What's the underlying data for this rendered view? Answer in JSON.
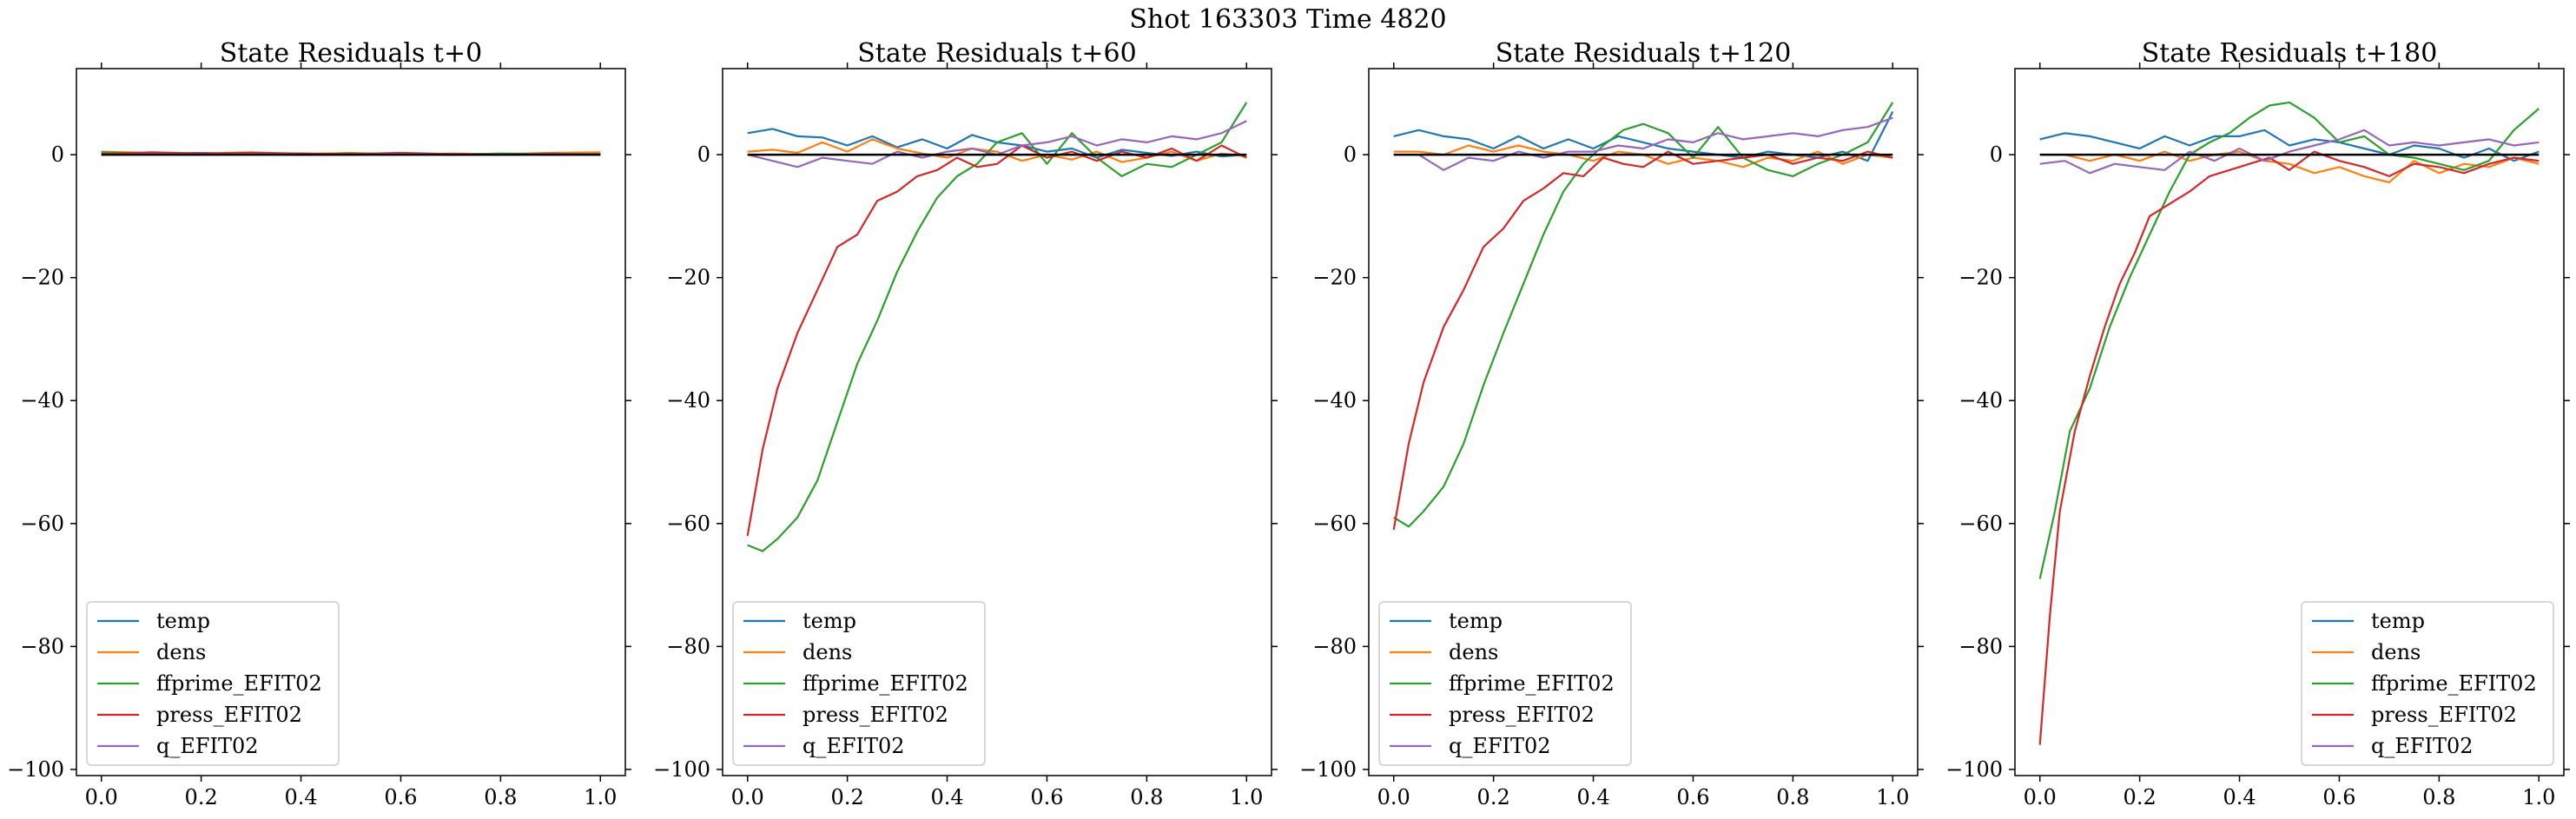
{
  "figure": {
    "suptitle": "Shot 163303   Time 4820"
  },
  "chart_data": [
    {
      "type": "line",
      "title": "State Residuals t+0",
      "xlim": [
        -0.05,
        1.05
      ],
      "ylim": [
        -101,
        14
      ],
      "xticks": [
        0.0,
        0.2,
        0.4,
        0.6,
        0.8,
        1.0
      ],
      "yticks": [
        -100,
        -80,
        -60,
        -40,
        -20,
        0
      ],
      "legend_position": "lower left",
      "reference_line": 0,
      "series": [
        {
          "name": "temp",
          "color": "#1f77b4",
          "x": [
            0.0,
            0.1,
            0.2,
            0.3,
            0.4,
            0.5,
            0.6,
            0.7,
            0.8,
            0.9,
            1.0
          ],
          "y": [
            0.2,
            0.1,
            0.3,
            0.1,
            0.2,
            0.0,
            0.1,
            0.0,
            0.1,
            0.0,
            0.2
          ]
        },
        {
          "name": "dens",
          "color": "#ff7f0e",
          "x": [
            0.0,
            0.1,
            0.2,
            0.3,
            0.4,
            0.5,
            0.6,
            0.7,
            0.8,
            0.9,
            1.0
          ],
          "y": [
            0.5,
            0.3,
            0.2,
            0.4,
            0.1,
            0.3,
            0.0,
            0.2,
            0.1,
            0.3,
            0.4
          ]
        },
        {
          "name": "ffprime_EFIT02",
          "color": "#2ca02c",
          "x": [
            0.0,
            0.1,
            0.2,
            0.3,
            0.4,
            0.5,
            0.6,
            0.7,
            0.8,
            0.9,
            1.0
          ],
          "y": [
            0.4,
            0.2,
            0.1,
            0.3,
            0.0,
            0.2,
            0.1,
            0.0,
            0.2,
            0.1,
            0.1
          ]
        },
        {
          "name": "press_EFIT02",
          "color": "#d62728",
          "x": [
            0.0,
            0.1,
            0.2,
            0.3,
            0.4,
            0.5,
            0.6,
            0.7,
            0.8,
            0.9,
            1.0
          ],
          "y": [
            0.1,
            0.4,
            0.2,
            0.3,
            0.2,
            0.1,
            0.3,
            0.1,
            0.0,
            0.2,
            0.0
          ]
        },
        {
          "name": "q_EFIT02",
          "color": "#9467bd",
          "x": [
            0.0,
            0.1,
            0.2,
            0.3,
            0.4,
            0.5,
            0.6,
            0.7,
            0.8,
            0.9,
            1.0
          ],
          "y": [
            0.0,
            0.1,
            0.0,
            0.1,
            0.0,
            0.0,
            0.1,
            0.0,
            0.0,
            0.1,
            0.0
          ]
        }
      ]
    },
    {
      "type": "line",
      "title": "State Residuals t+60",
      "xlim": [
        -0.05,
        1.05
      ],
      "ylim": [
        -101,
        14
      ],
      "xticks": [
        0.0,
        0.2,
        0.4,
        0.6,
        0.8,
        1.0
      ],
      "yticks": [
        -100,
        -80,
        -60,
        -40,
        -20,
        0
      ],
      "legend_position": "lower left",
      "reference_line": 0,
      "series": [
        {
          "name": "temp",
          "color": "#1f77b4",
          "x": [
            0.0,
            0.05,
            0.1,
            0.15,
            0.2,
            0.25,
            0.3,
            0.35,
            0.4,
            0.45,
            0.5,
            0.55,
            0.6,
            0.65,
            0.7,
            0.75,
            0.8,
            0.85,
            0.9,
            0.95,
            1.0
          ],
          "y": [
            3.5,
            4.2,
            3.0,
            2.8,
            1.5,
            3.0,
            1.2,
            2.5,
            1.0,
            3.2,
            2.0,
            1.5,
            0.5,
            1.0,
            -0.5,
            0.8,
            0.3,
            -0.2,
            0.5,
            -0.3,
            0.0
          ]
        },
        {
          "name": "dens",
          "color": "#ff7f0e",
          "x": [
            0.0,
            0.05,
            0.1,
            0.15,
            0.2,
            0.25,
            0.3,
            0.35,
            0.4,
            0.45,
            0.5,
            0.55,
            0.6,
            0.65,
            0.7,
            0.75,
            0.8,
            0.85,
            0.9,
            0.95,
            1.0
          ],
          "y": [
            0.5,
            0.8,
            0.3,
            2.0,
            0.5,
            2.5,
            1.0,
            0.2,
            -0.5,
            1.0,
            0.5,
            -1.0,
            0.0,
            -0.8,
            0.5,
            -1.2,
            -0.5,
            0.5,
            -1.0,
            0.2,
            -0.3
          ]
        },
        {
          "name": "ffprime_EFIT02",
          "color": "#2ca02c",
          "x": [
            0.0,
            0.03,
            0.06,
            0.1,
            0.14,
            0.18,
            0.22,
            0.26,
            0.3,
            0.34,
            0.38,
            0.42,
            0.46,
            0.5,
            0.55,
            0.6,
            0.65,
            0.7,
            0.75,
            0.8,
            0.85,
            0.9,
            0.95,
            1.0
          ],
          "y": [
            -63.5,
            -64.5,
            -62.5,
            -59,
            -53,
            -43.5,
            -34,
            -27,
            -19,
            -12.5,
            -7,
            -3.5,
            -1.5,
            2,
            3.5,
            -1.5,
            3.5,
            -0.5,
            -3.5,
            -1.5,
            -2.0,
            0.0,
            2.0,
            8.5
          ]
        },
        {
          "name": "press_EFIT02",
          "color": "#d62728",
          "x": [
            0.0,
            0.03,
            0.06,
            0.1,
            0.14,
            0.18,
            0.22,
            0.26,
            0.3,
            0.34,
            0.38,
            0.42,
            0.46,
            0.5,
            0.55,
            0.6,
            0.65,
            0.7,
            0.75,
            0.8,
            0.85,
            0.9,
            0.95,
            1.0
          ],
          "y": [
            -62,
            -48,
            -38,
            -29,
            -22,
            -15,
            -13,
            -7.5,
            -6,
            -3.5,
            -2.5,
            -0.5,
            -2,
            -1.5,
            1.5,
            -0.5,
            0.5,
            -1.0,
            0.5,
            -0.5,
            1.0,
            -1.0,
            1.5,
            -0.5
          ]
        },
        {
          "name": "q_EFIT02",
          "color": "#9467bd",
          "x": [
            0.0,
            0.05,
            0.1,
            0.15,
            0.2,
            0.25,
            0.3,
            0.35,
            0.4,
            0.45,
            0.5,
            0.55,
            0.6,
            0.65,
            0.7,
            0.75,
            0.8,
            0.85,
            0.9,
            0.95,
            1.0
          ],
          "y": [
            0.0,
            -1.0,
            -2.0,
            -0.5,
            -1.0,
            -1.5,
            0.5,
            -0.5,
            0.5,
            1.0,
            0.0,
            1.5,
            2.0,
            3.0,
            1.5,
            2.5,
            2.0,
            3.0,
            2.5,
            3.5,
            5.5
          ]
        }
      ]
    },
    {
      "type": "line",
      "title": "State Residuals t+120",
      "xlim": [
        -0.05,
        1.05
      ],
      "ylim": [
        -101,
        14
      ],
      "xticks": [
        0.0,
        0.2,
        0.4,
        0.6,
        0.8,
        1.0
      ],
      "yticks": [
        -100,
        -80,
        -60,
        -40,
        -20,
        0
      ],
      "legend_position": "lower left",
      "reference_line": 0,
      "series": [
        {
          "name": "temp",
          "color": "#1f77b4",
          "x": [
            0.0,
            0.05,
            0.1,
            0.15,
            0.2,
            0.25,
            0.3,
            0.35,
            0.4,
            0.45,
            0.5,
            0.55,
            0.6,
            0.65,
            0.7,
            0.75,
            0.8,
            0.85,
            0.9,
            0.95,
            1.0
          ],
          "y": [
            3.0,
            4.0,
            3.0,
            2.5,
            1.0,
            3.0,
            1.0,
            2.5,
            1.0,
            3.0,
            2.0,
            1.0,
            0.5,
            0.0,
            -0.5,
            0.5,
            0.0,
            -0.5,
            0.5,
            -1.0,
            7.0
          ]
        },
        {
          "name": "dens",
          "color": "#ff7f0e",
          "x": [
            0.0,
            0.05,
            0.1,
            0.15,
            0.2,
            0.25,
            0.3,
            0.35,
            0.4,
            0.45,
            0.5,
            0.55,
            0.6,
            0.65,
            0.7,
            0.75,
            0.8,
            0.85,
            0.9,
            0.95,
            1.0
          ],
          "y": [
            0.5,
            0.5,
            0.0,
            1.5,
            0.5,
            1.5,
            0.5,
            0.0,
            -1.0,
            0.5,
            0.0,
            -1.5,
            -0.5,
            -1.0,
            -2.0,
            -0.5,
            -1.0,
            0.5,
            -1.5,
            0.0,
            -0.5
          ]
        },
        {
          "name": "ffprime_EFIT02",
          "color": "#2ca02c",
          "x": [
            0.0,
            0.03,
            0.06,
            0.1,
            0.14,
            0.18,
            0.22,
            0.26,
            0.3,
            0.34,
            0.38,
            0.42,
            0.46,
            0.5,
            0.55,
            0.6,
            0.65,
            0.7,
            0.75,
            0.8,
            0.85,
            0.9,
            0.95,
            1.0
          ],
          "y": [
            -59,
            -60.5,
            -58,
            -54,
            -47,
            -37.5,
            -29,
            -21,
            -13,
            -6,
            -1.5,
            1.5,
            4,
            5,
            3.5,
            -0.5,
            4.5,
            -0.5,
            -2.5,
            -3.5,
            -1.5,
            0.0,
            2.0,
            8.5
          ]
        },
        {
          "name": "press_EFIT02",
          "color": "#d62728",
          "x": [
            0.0,
            0.03,
            0.06,
            0.1,
            0.14,
            0.18,
            0.22,
            0.26,
            0.3,
            0.34,
            0.38,
            0.42,
            0.46,
            0.5,
            0.55,
            0.6,
            0.65,
            0.7,
            0.75,
            0.8,
            0.85,
            0.9,
            0.95,
            1.0
          ],
          "y": [
            -61,
            -47,
            -37,
            -28,
            -22,
            -15,
            -12,
            -7.5,
            -5.5,
            -3,
            -3.5,
            -0.5,
            -1.5,
            -2,
            0.5,
            -1.5,
            -1.0,
            -0.5,
            0.0,
            -1.5,
            -0.5,
            -1.0,
            0.5,
            -0.5
          ]
        },
        {
          "name": "q_EFIT02",
          "color": "#9467bd",
          "x": [
            0.0,
            0.05,
            0.1,
            0.15,
            0.2,
            0.25,
            0.3,
            0.35,
            0.4,
            0.45,
            0.5,
            0.55,
            0.6,
            0.65,
            0.7,
            0.75,
            0.8,
            0.85,
            0.9,
            0.95,
            1.0
          ],
          "y": [
            0.0,
            0.0,
            -2.5,
            -0.5,
            -1.0,
            0.5,
            -0.5,
            0.5,
            0.5,
            1.5,
            1.0,
            2.5,
            2.0,
            3.5,
            2.5,
            3.0,
            3.5,
            3.0,
            4.0,
            4.5,
            6.0
          ]
        }
      ]
    },
    {
      "type": "line",
      "title": "State Residuals t+180",
      "xlim": [
        -0.05,
        1.05
      ],
      "ylim": [
        -101,
        14
      ],
      "xticks": [
        0.0,
        0.2,
        0.4,
        0.6,
        0.8,
        1.0
      ],
      "yticks": [
        -100,
        -80,
        -60,
        -40,
        -20,
        0
      ],
      "legend_position": "lower right",
      "reference_line": 0,
      "series": [
        {
          "name": "temp",
          "color": "#1f77b4",
          "x": [
            0.0,
            0.05,
            0.1,
            0.15,
            0.2,
            0.25,
            0.3,
            0.35,
            0.4,
            0.45,
            0.5,
            0.55,
            0.6,
            0.65,
            0.7,
            0.75,
            0.8,
            0.85,
            0.9,
            0.95,
            1.0
          ],
          "y": [
            2.5,
            3.5,
            3.0,
            2.0,
            1.0,
            3.0,
            1.5,
            3.0,
            3.0,
            4.0,
            1.5,
            2.5,
            2.0,
            1.0,
            0.0,
            1.5,
            1.0,
            -0.5,
            1.0,
            -1.0,
            0.5
          ]
        },
        {
          "name": "dens",
          "color": "#ff7f0e",
          "x": [
            0.0,
            0.05,
            0.1,
            0.15,
            0.2,
            0.25,
            0.3,
            0.35,
            0.4,
            0.45,
            0.5,
            0.55,
            0.6,
            0.65,
            0.7,
            0.75,
            0.8,
            0.85,
            0.9,
            0.95,
            1.0
          ],
          "y": [
            0.0,
            0.0,
            -1.0,
            0.0,
            -1.0,
            0.5,
            -1.0,
            0.0,
            0.5,
            -1.0,
            -1.5,
            -3.0,
            -2.0,
            -3.5,
            -4.5,
            -1.0,
            -3.0,
            -1.5,
            -2.0,
            -0.5,
            -1.5
          ]
        },
        {
          "name": "ffprime_EFIT02",
          "color": "#2ca02c",
          "x": [
            0.0,
            0.03,
            0.06,
            0.1,
            0.14,
            0.18,
            0.22,
            0.26,
            0.3,
            0.34,
            0.38,
            0.42,
            0.46,
            0.5,
            0.55,
            0.6,
            0.65,
            0.7,
            0.75,
            0.8,
            0.85,
            0.9,
            0.95,
            1.0
          ],
          "y": [
            -69,
            -58,
            -45,
            -38,
            -28,
            -20,
            -13,
            -6,
            0,
            2,
            3.5,
            6,
            8,
            8.5,
            6,
            2,
            3,
            0,
            -0.5,
            -1.5,
            -2.5,
            -1,
            4,
            7.5
          ]
        },
        {
          "name": "press_EFIT02",
          "color": "#d62728",
          "x": [
            0.0,
            0.02,
            0.04,
            0.07,
            0.1,
            0.13,
            0.16,
            0.19,
            0.22,
            0.26,
            0.3,
            0.34,
            0.38,
            0.42,
            0.46,
            0.5,
            0.55,
            0.6,
            0.65,
            0.7,
            0.75,
            0.8,
            0.85,
            0.9,
            0.95,
            1.0
          ],
          "y": [
            -96,
            -75,
            -58,
            -45,
            -36,
            -28,
            -21,
            -16,
            -10,
            -8,
            -6,
            -3.5,
            -2.5,
            -1.5,
            -0.5,
            -2.5,
            0.5,
            -1.0,
            -2.0,
            -3.5,
            -1.5,
            -2.0,
            -3.0,
            -1.5,
            -0.5,
            -1.0
          ]
        },
        {
          "name": "q_EFIT02",
          "color": "#9467bd",
          "x": [
            0.0,
            0.05,
            0.1,
            0.15,
            0.2,
            0.25,
            0.3,
            0.35,
            0.4,
            0.45,
            0.5,
            0.55,
            0.6,
            0.65,
            0.7,
            0.75,
            0.8,
            0.85,
            0.9,
            0.95,
            1.0
          ],
          "y": [
            -1.5,
            -1.0,
            -3.0,
            -1.5,
            -2.0,
            -2.5,
            0.5,
            -1.0,
            1.0,
            -1.0,
            0.5,
            1.5,
            2.5,
            4.0,
            1.5,
            2.0,
            1.5,
            2.0,
            2.5,
            1.5,
            2.0
          ]
        }
      ]
    }
  ]
}
